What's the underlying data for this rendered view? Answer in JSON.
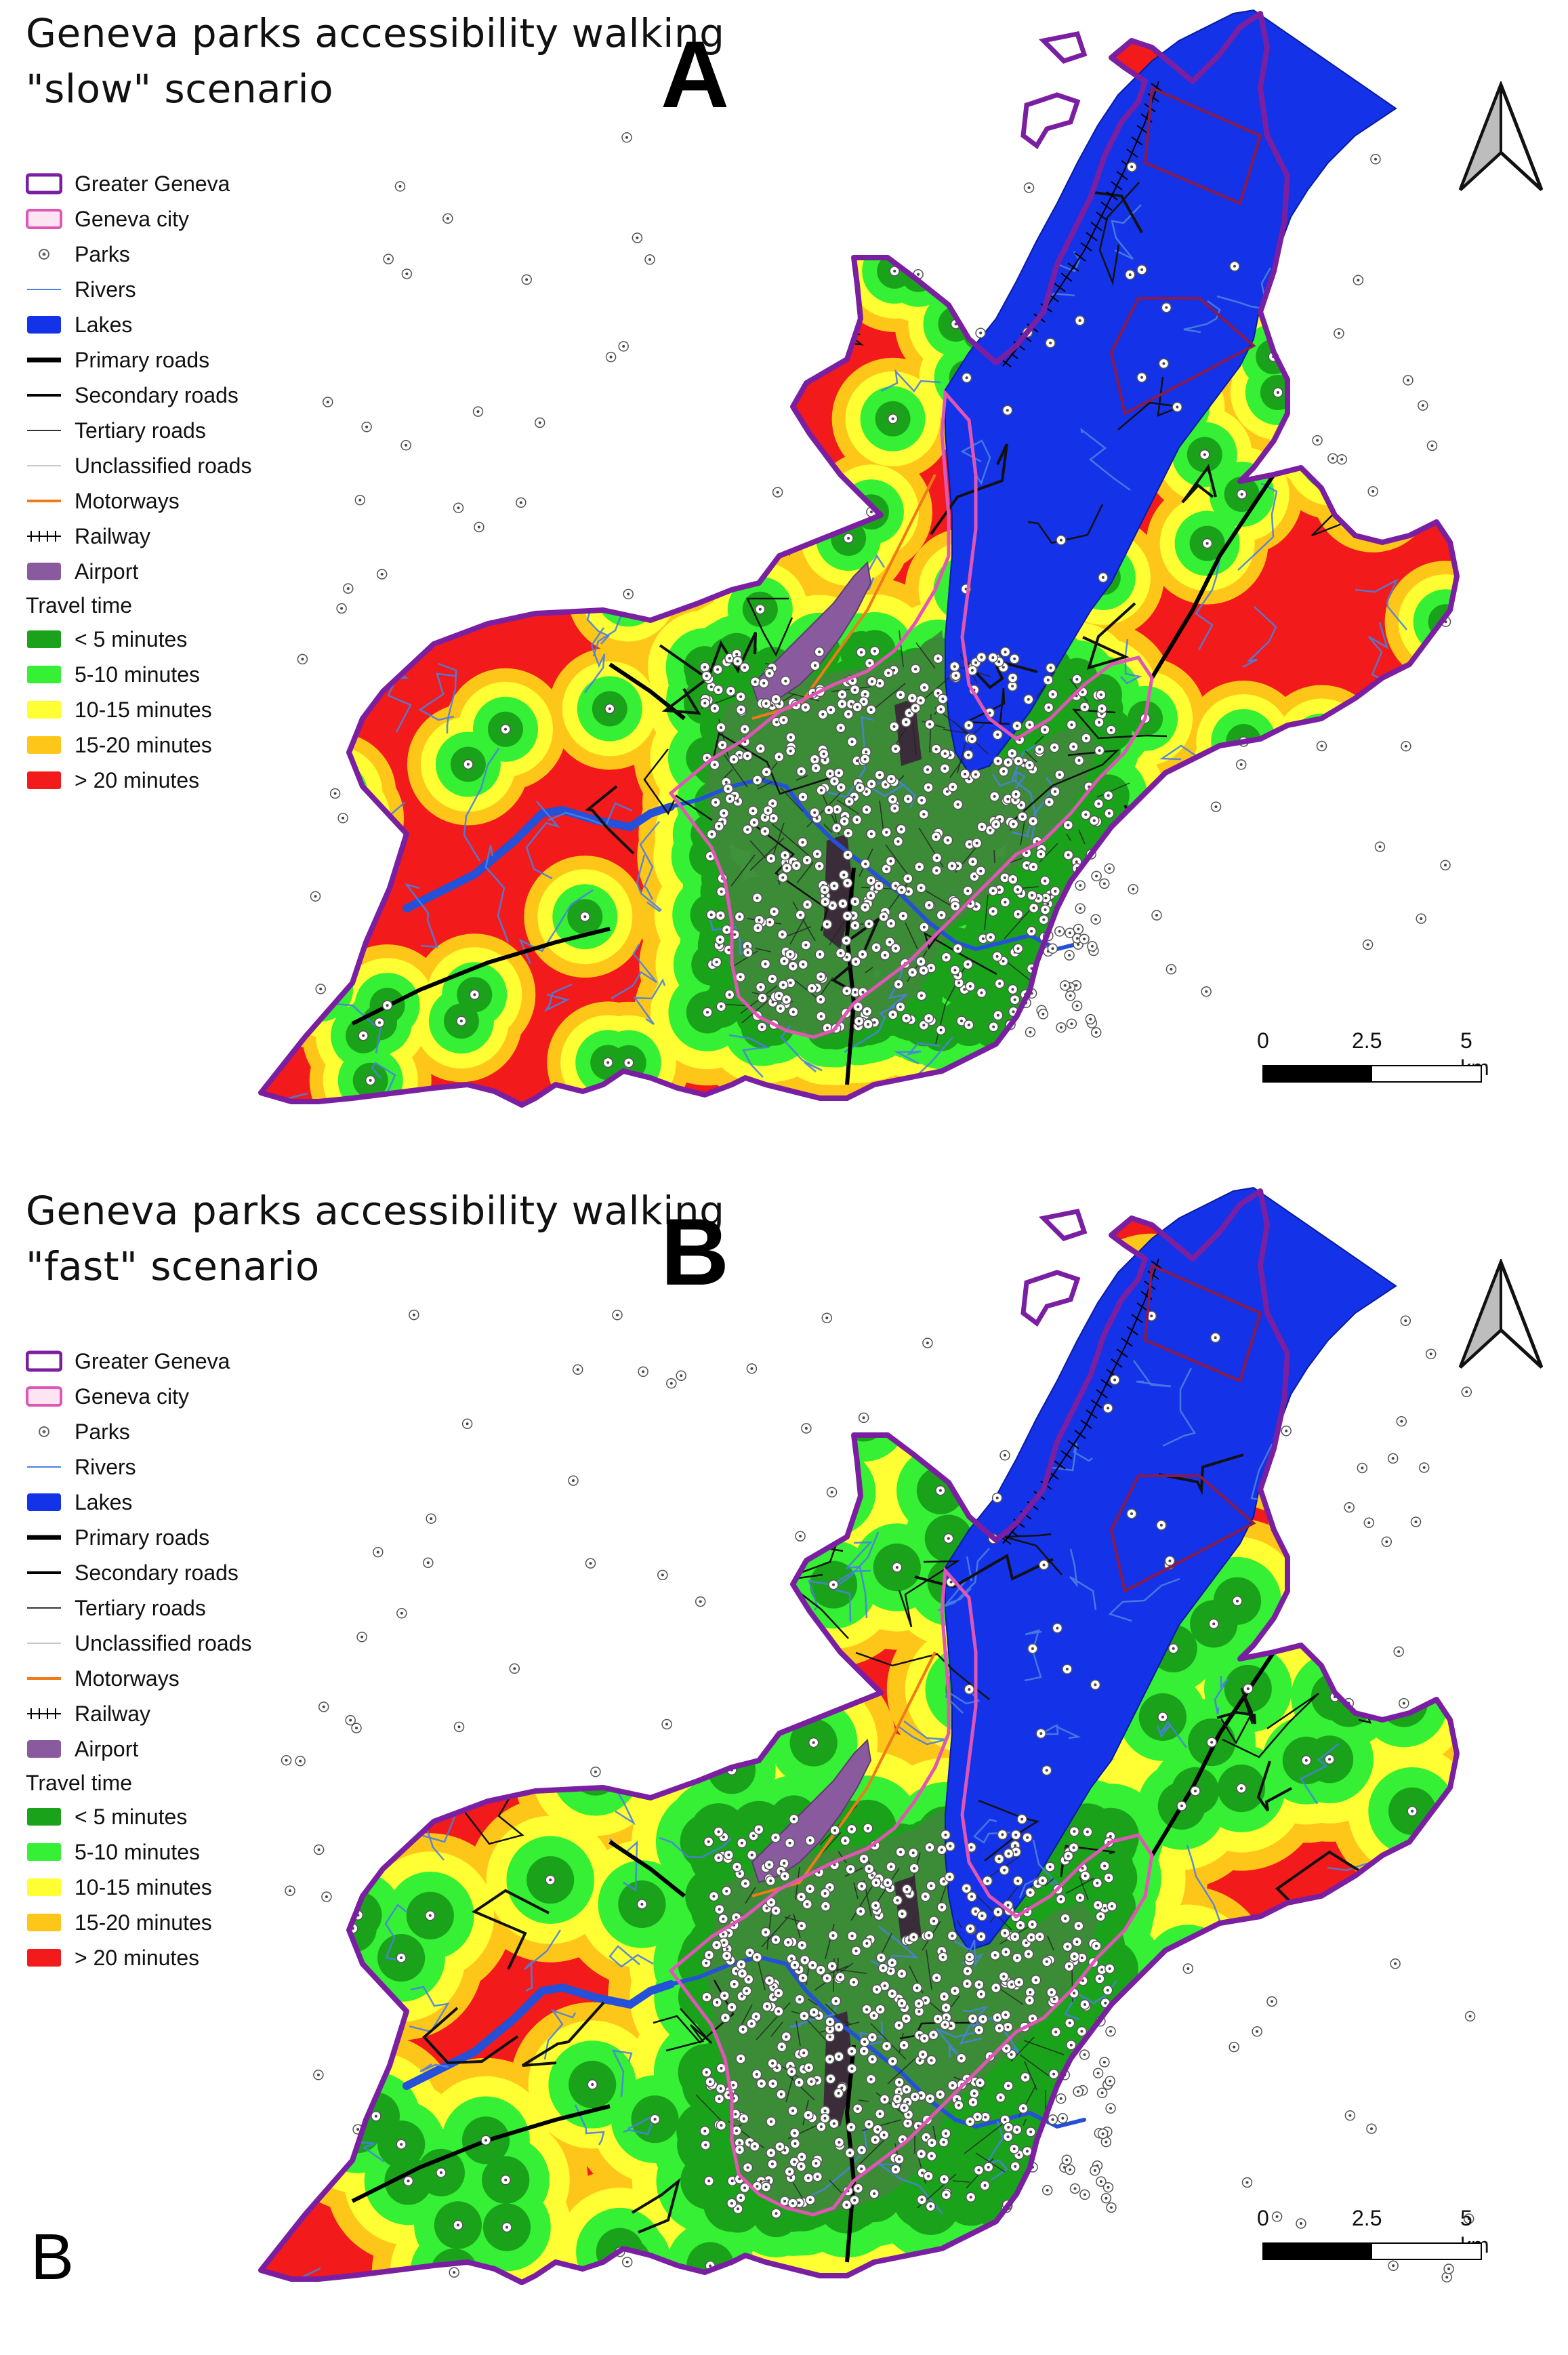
{
  "panels": [
    {
      "title_line1": "Geneva parks accessibility walking",
      "title_line2": "\"slow\" scenario",
      "letter": "A"
    },
    {
      "title_line1": "Geneva parks accessibility walking",
      "title_line2": "\"fast\" scenario",
      "letter": "B"
    }
  ],
  "legend": {
    "items": [
      {
        "label": "Greater Geneva",
        "symbol": "box-outline",
        "color": "#7b1fa2"
      },
      {
        "label": "Geneva city",
        "symbol": "box-outline-fill",
        "color": "#e056b5"
      },
      {
        "label": "Parks",
        "symbol": "dot",
        "color": "#666666"
      },
      {
        "label": "Rivers",
        "symbol": "line",
        "color": "#4a7fe0"
      },
      {
        "label": "Lakes",
        "symbol": "box",
        "color": "#1432e8"
      },
      {
        "label": "Primary roads",
        "symbol": "line-thick",
        "color": "#000000"
      },
      {
        "label": "Secondary roads",
        "symbol": "line-medium",
        "color": "#000000"
      },
      {
        "label": "Tertiary roads",
        "symbol": "line-thin",
        "color": "#333333"
      },
      {
        "label": "Unclassified roads",
        "symbol": "line-faint",
        "color": "#c8c8c8"
      },
      {
        "label": "Motorways",
        "symbol": "line-medium",
        "color": "#f07a1a"
      },
      {
        "label": "Railway",
        "symbol": "railway",
        "color": "#000000"
      },
      {
        "label": "Airport",
        "symbol": "box",
        "color": "#8a5a9e"
      }
    ],
    "travel_time_title": "Travel time",
    "travel_time_classes": [
      {
        "label": "< 5 minutes",
        "color": "#1aa31a"
      },
      {
        "label": "5-10 minutes",
        "color": "#35f035"
      },
      {
        "label": "10-15 minutes",
        "color": "#ffff33"
      },
      {
        "label": "15-20 minutes",
        "color": "#ffc61a"
      },
      {
        "label": "> 20 minutes",
        "color": "#f21a1a"
      }
    ]
  },
  "scalebar": {
    "labels": [
      "0",
      "2.5",
      "5 km"
    ]
  },
  "corner_label": "B",
  "colors": {
    "boundary": "#7b1fa2",
    "city": "#e056b5",
    "lake": "#1432e8",
    "airport": "#8a5a9e",
    "river": "#2550d8"
  },
  "icons": [
    "north-arrow-icon",
    "scale-bar"
  ]
}
